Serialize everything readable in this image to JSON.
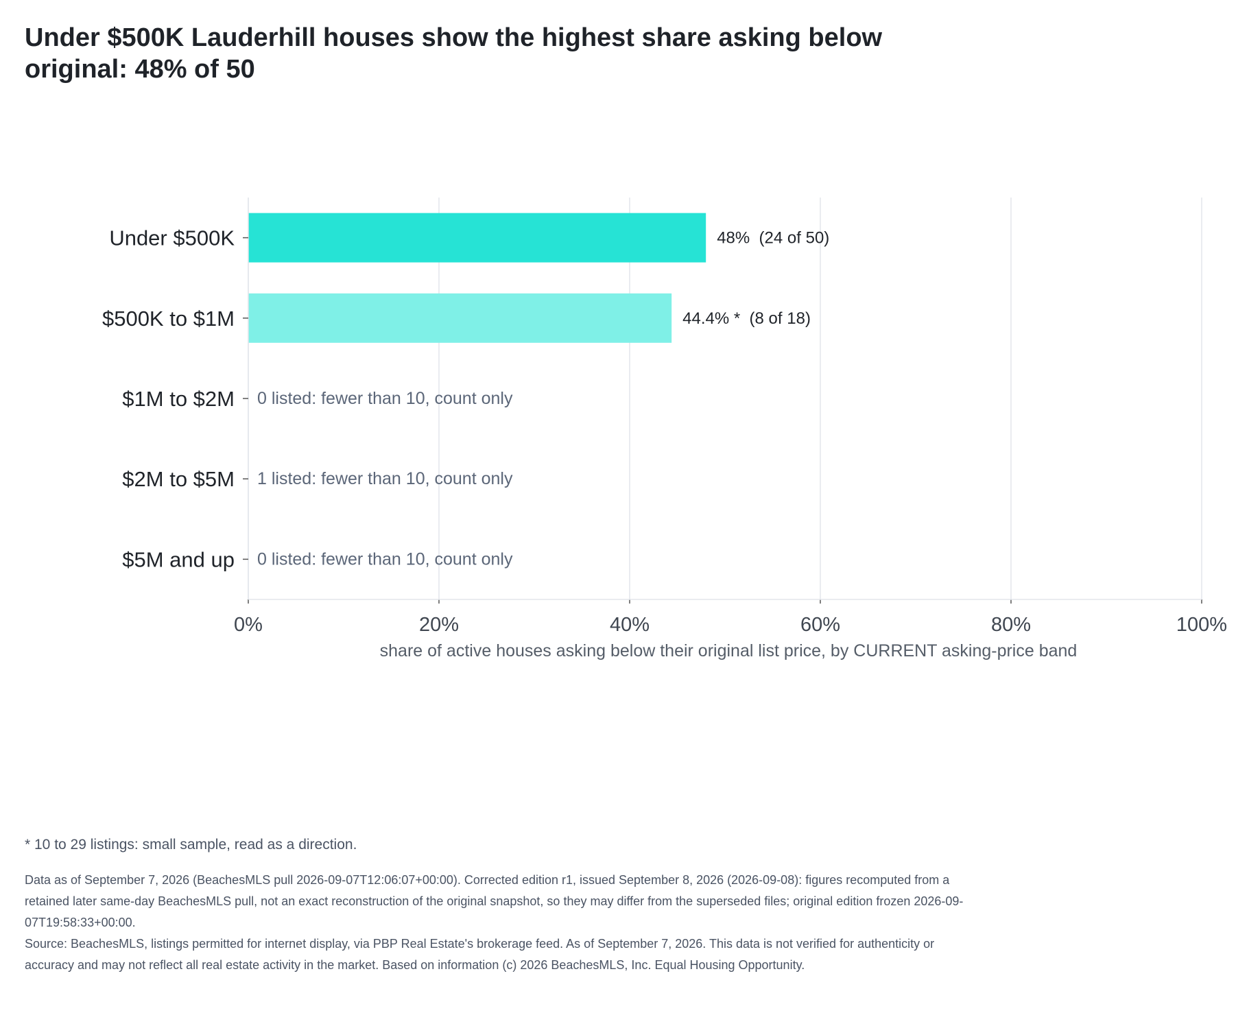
{
  "title": "Under $500K Lauderhill houses show the highest share asking below original: 48% of 50",
  "chart_data": {
    "type": "bar",
    "orientation": "horizontal",
    "categories": [
      "Under $500K",
      "$500K to $1M",
      "$1M to $2M",
      "$2M to $5M",
      "$5M and up"
    ],
    "values": [
      48,
      44.4,
      null,
      null,
      null
    ],
    "bar_labels": [
      "48%  (24 of 50)",
      "44.4% *  (8 of 18)",
      "0 listed: fewer than 10, count only",
      "1 listed: fewer than 10, count only",
      "0 listed: fewer than 10, count only"
    ],
    "bar_colors": [
      "#26e3d5",
      "#7ff0e7",
      null,
      null,
      null
    ],
    "xlabel": "share of active houses asking below their original list price, by CURRENT asking-price band",
    "ylabel": "",
    "xlim": [
      0,
      100
    ],
    "x_ticks": [
      0,
      20,
      40,
      60,
      80,
      100
    ],
    "x_tick_labels": [
      "0%",
      "20%",
      "40%",
      "60%",
      "80%",
      "100%"
    ],
    "grid": true,
    "legend": "none"
  },
  "footnote": "* 10 to 29 listings: small sample, read as a direction.",
  "data_note": "Data as of September 7, 2026 (BeachesMLS pull 2026-09-07T12:06:07+00:00). Corrected edition r1, issued September 8, 2026 (2026-09-08): figures recomputed from a retained later same-day BeachesMLS pull, not an exact reconstruction of the original snapshot, so they may differ from the superseded files; original edition frozen 2026-09-07T19:58:33+00:00.",
  "source_note": "Source: BeachesMLS, listings permitted for internet display, via PBP Real Estate's brokerage feed. As of September 7, 2026. This data is not verified for authenticity or accuracy and may not reflect all real estate activity in the market. Based on information (c) 2026 BeachesMLS, Inc. Equal Housing Opportunity.",
  "colors": {
    "grid": "#e3e6ec",
    "axis": "#555555",
    "note_text": "#5b6678"
  }
}
